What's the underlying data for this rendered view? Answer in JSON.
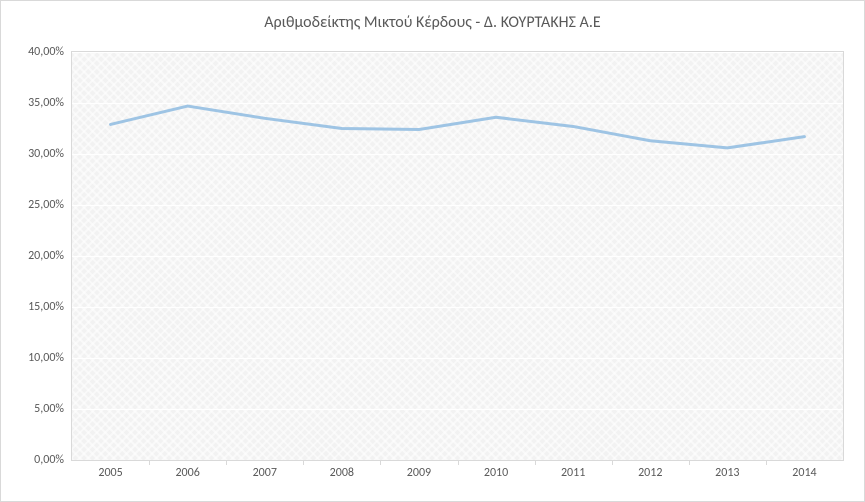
{
  "chart": {
    "type": "line",
    "title": "Αριθμοδείκτης Μικτού Κέρδους - Δ. ΚΟΥΡΤΑΚΗΣ Α.Ε",
    "title_fontsize": 16,
    "title_color": "#595959",
    "categories": [
      "2005",
      "2006",
      "2007",
      "2008",
      "2009",
      "2010",
      "2011",
      "2012",
      "2013",
      "2014"
    ],
    "values": [
      32.9,
      34.7,
      33.5,
      32.5,
      32.4,
      33.6,
      32.7,
      31.3,
      30.6,
      31.7
    ],
    "y_ticks": [
      0,
      5,
      10,
      15,
      20,
      25,
      30,
      35,
      40
    ],
    "y_tick_labels": [
      "0,00%",
      "5,00%",
      "10,00%",
      "15,00%",
      "20,00%",
      "25,00%",
      "30,00%",
      "35,00%",
      "40,00%"
    ],
    "ylim": [
      0,
      40
    ],
    "line_color": "#9ec4e4",
    "line_width": 3,
    "background_color": "#ffffff",
    "plot_bg_pattern": "crosshatch",
    "plot_bg_color": "#f2f2f2",
    "grid_color": "#ffffff",
    "axis_label_color": "#595959",
    "axis_label_fontsize": 12,
    "border_color": "#d9d9d9"
  }
}
